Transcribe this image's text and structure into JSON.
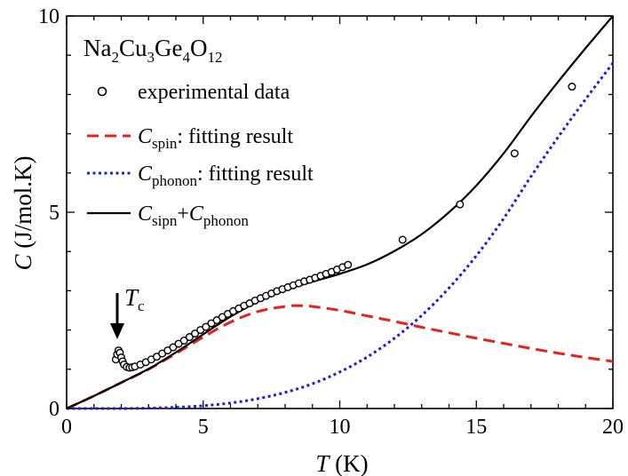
{
  "chart_data": {
    "type": "line",
    "title": {
      "parts": [
        "Na",
        "2",
        "Cu",
        "3",
        "Ge",
        "4",
        "O",
        "12"
      ]
    },
    "xlabel": {
      "italic": "T",
      "unit": " (K)"
    },
    "ylabel": {
      "italic": "C",
      "unit": " (J/mol.K)"
    },
    "xlim": [
      0,
      20
    ],
    "ylim": [
      0,
      10
    ],
    "x_ticks": [
      "0",
      "5",
      "10",
      "15",
      "20"
    ],
    "y_ticks": [
      "0",
      "5",
      "10"
    ],
    "legend_position": "top-left",
    "grid": false,
    "annotation": {
      "italic": "T",
      "sub": "c",
      "x": 1.9,
      "y": 1.55
    },
    "series": [
      {
        "name": "experimental data",
        "style": "open-circles",
        "color": "#000000",
        "x": [
          1.8,
          1.85,
          1.9,
          1.95,
          2.0,
          2.05,
          2.1,
          2.2,
          2.3,
          2.4,
          2.5,
          2.7,
          2.9,
          3.1,
          3.3,
          3.5,
          3.7,
          3.9,
          4.1,
          4.3,
          4.5,
          4.7,
          4.9,
          5.1,
          5.3,
          5.5,
          5.7,
          5.9,
          6.1,
          6.3,
          6.5,
          6.7,
          6.9,
          7.1,
          7.3,
          7.5,
          7.7,
          7.9,
          8.1,
          8.3,
          8.5,
          8.7,
          8.9,
          9.1,
          9.3,
          9.5,
          9.7,
          9.9,
          10.1,
          10.3,
          12.3,
          14.4,
          16.4,
          18.5
        ],
        "y": [
          1.25,
          1.38,
          1.48,
          1.42,
          1.3,
          1.2,
          1.12,
          1.06,
          1.04,
          1.05,
          1.07,
          1.12,
          1.18,
          1.25,
          1.32,
          1.4,
          1.48,
          1.56,
          1.65,
          1.73,
          1.82,
          1.91,
          2.0,
          2.08,
          2.17,
          2.25,
          2.33,
          2.41,
          2.48,
          2.55,
          2.62,
          2.68,
          2.75,
          2.81,
          2.87,
          2.93,
          2.99,
          3.04,
          3.09,
          3.14,
          3.19,
          3.24,
          3.28,
          3.33,
          3.38,
          3.43,
          3.48,
          3.54,
          3.6,
          3.66,
          4.3,
          5.2,
          6.5,
          8.2
        ]
      },
      {
        "name": "spin: fitting result",
        "label_italic": "C",
        "label_sub": "spin",
        "label_rest": ": fitting result",
        "style": "dashed",
        "color": "#e8211b",
        "x": [
          0,
          1,
          2,
          3,
          4,
          5,
          6,
          7,
          8,
          8.5,
          9,
          10,
          11,
          12,
          13,
          14,
          15,
          16,
          17,
          18,
          19,
          20
        ],
        "y": [
          0,
          0.32,
          0.66,
          1.0,
          1.4,
          1.82,
          2.2,
          2.47,
          2.6,
          2.62,
          2.6,
          2.5,
          2.36,
          2.22,
          2.07,
          1.93,
          1.79,
          1.66,
          1.53,
          1.41,
          1.3,
          1.2
        ]
      },
      {
        "name": "phonon: fitting result",
        "label_italic": "C",
        "label_sub": "phonon",
        "label_rest": ": fitting result",
        "style": "dotted",
        "color": "#1c1ce0",
        "x": [
          0,
          1,
          2,
          3,
          4,
          5,
          6,
          7,
          8,
          9,
          10,
          11,
          12,
          13,
          14,
          15,
          16,
          17,
          18,
          19,
          20
        ],
        "y": [
          0,
          0.0,
          0.0,
          0.01,
          0.03,
          0.07,
          0.14,
          0.25,
          0.41,
          0.63,
          0.93,
          1.31,
          1.79,
          2.37,
          3.07,
          3.89,
          4.84,
          5.91,
          6.92,
          7.88,
          8.8
        ]
      },
      {
        "name": "sipn+phonon",
        "label_italic": "C",
        "label_sub": "sipn",
        "label_mid": "+",
        "label_italic2": "C",
        "label_sub2": "phonon",
        "style": "solid",
        "color": "#000000",
        "x": [
          0,
          1,
          2,
          3,
          4,
          5,
          6,
          7,
          8,
          9,
          10,
          11,
          12,
          13,
          14,
          15,
          16,
          17,
          18,
          19,
          20
        ],
        "y": [
          0,
          0.32,
          0.66,
          1.01,
          1.43,
          1.89,
          2.34,
          2.72,
          3.01,
          3.23,
          3.43,
          3.67,
          4.01,
          4.44,
          5.0,
          5.68,
          6.5,
          7.44,
          8.33,
          9.18,
          10.0
        ]
      }
    ]
  }
}
